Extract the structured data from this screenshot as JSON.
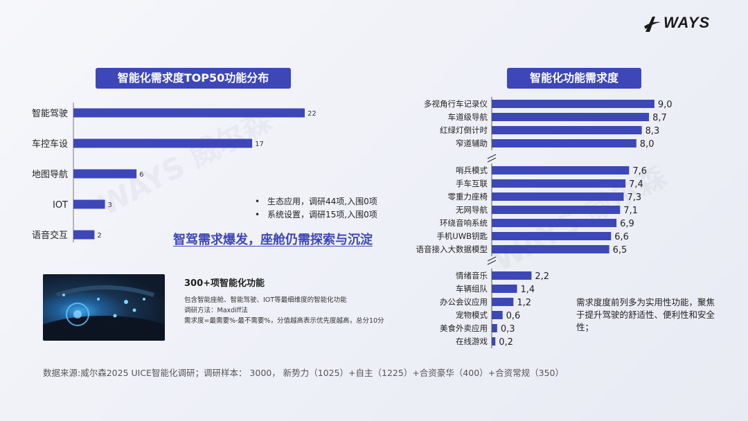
{
  "brand": {
    "logo_text": "WAYS"
  },
  "watermark": "WAYS 威尔森",
  "left_panel": {
    "title": "智能化需求度TOP50功能分布",
    "bullets": [
      "生态应用，调研44项,入围0项",
      "系统设置，调研15项,入围0项"
    ],
    "headline": "智驾需求爆发，座舱仍需探索与沉淀"
  },
  "right_panel": {
    "title": "智能化功能需求度",
    "note": "需求度度前列多为实用性功能，聚焦于提升驾驶的舒适性、便利性和安全性；"
  },
  "info_box": {
    "title": "300+项智能化功能",
    "lines": [
      "包含智能座舱、智能驾驶、IOT等最细维度的智能化功能",
      "调研方法：Maxdiff法",
      "需求度=最需要%-最不需要%，分值越高表示优先度越高，总分10分"
    ]
  },
  "source": "数据来源:威尔森2025 UICE智能化调研；调研样本： 3000， 新势力（1025）+自主（1225）+合资豪华（400）+合资常规（350）",
  "colors": {
    "bar": "#3d47b8",
    "accent": "#3d47b8"
  },
  "chart_data": [
    {
      "type": "bar",
      "orientation": "horizontal",
      "title": "智能化需求度TOP50功能分布",
      "categories": [
        "智能驾驶",
        "车控车设",
        "地图导航",
        "IOT",
        "语音交互"
      ],
      "values": [
        22,
        17,
        6,
        3,
        2
      ],
      "data_labels": [
        "22",
        "17",
        "6",
        "3",
        "2"
      ],
      "xlim": [
        0,
        22
      ]
    },
    {
      "type": "bar",
      "orientation": "horizontal",
      "title": "智能化功能需求度",
      "axis_break": true,
      "groups": [
        {
          "categories": [
            "多视角行车记录仪",
            "车道级导航",
            "红绿灯倒计时",
            "窄道辅助"
          ],
          "values": [
            9.0,
            8.7,
            8.3,
            8.0
          ],
          "data_labels": [
            "9,0",
            "8,7",
            "8,3",
            "8,0"
          ]
        },
        {
          "categories": [
            "哨兵模式",
            "手车互联",
            "零重力座椅",
            "无网导航",
            "环绕音响系统",
            "手机UWB钥匙",
            "语音接入大数据模型"
          ],
          "values": [
            7.6,
            7.4,
            7.3,
            7.1,
            6.9,
            6.6,
            6.5
          ],
          "data_labels": [
            "7,6",
            "7,4",
            "7,3",
            "7,1",
            "6,9",
            "6,6",
            "6,5"
          ]
        },
        {
          "categories": [
            "情绪音乐",
            "车辆组队",
            "办公会议应用",
            "宠物模式",
            "美食外卖应用",
            "在线游戏"
          ],
          "values": [
            2.2,
            1.4,
            1.2,
            0.6,
            0.3,
            0.2
          ],
          "data_labels": [
            "2,2",
            "1,4",
            "1,2",
            "0,6",
            "0,3",
            "0,2"
          ]
        }
      ]
    }
  ]
}
